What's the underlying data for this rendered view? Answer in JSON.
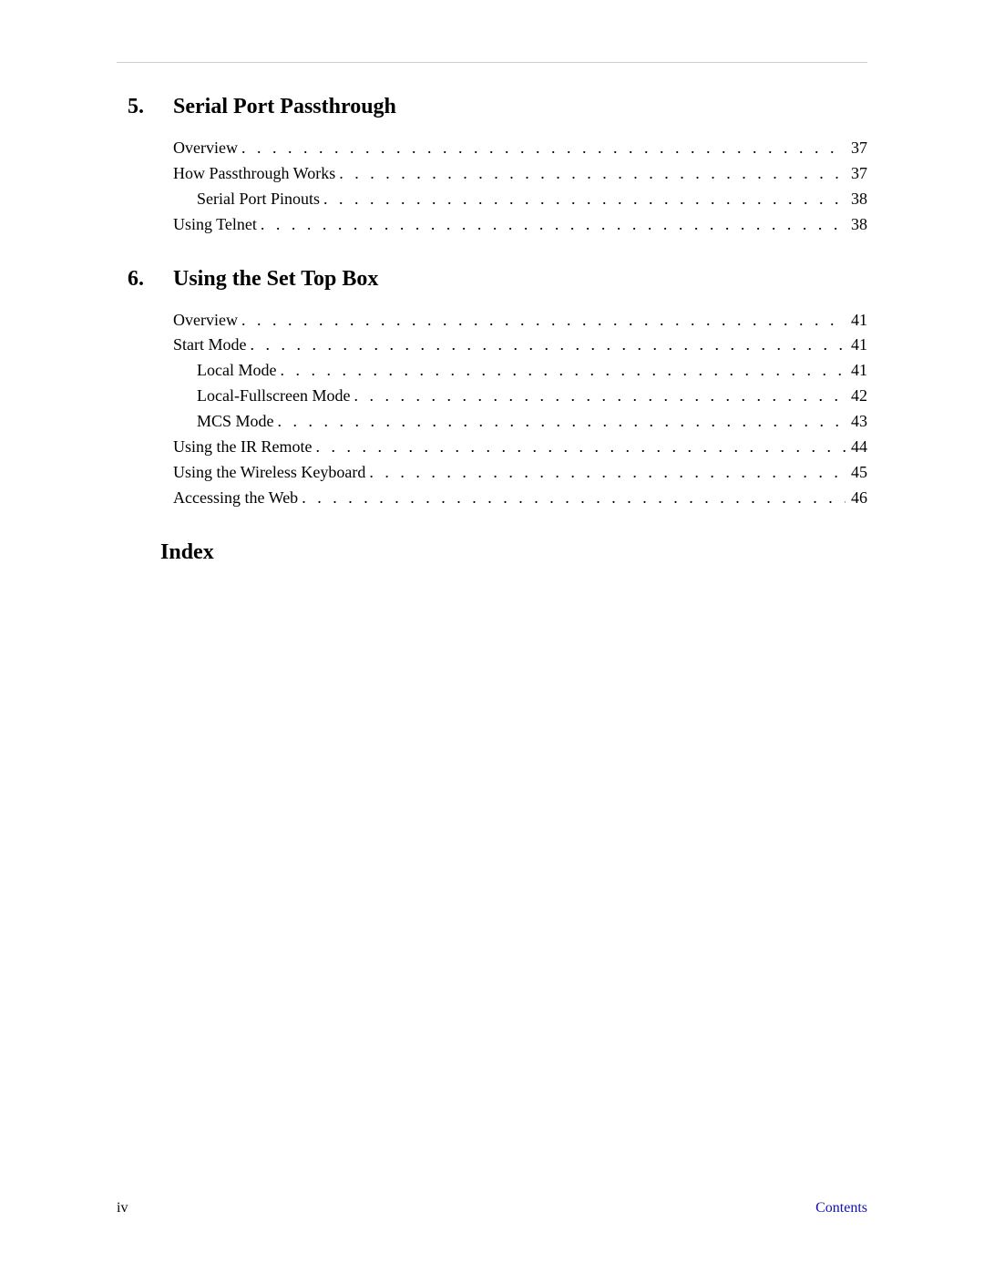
{
  "colors": {
    "background": "#ffffff",
    "text": "#000000",
    "rule": "#cccccc",
    "link": "#1010b8"
  },
  "typography": {
    "body_font": "Garamond / serif",
    "heading_fontsize_pt": 18,
    "body_fontsize_pt": 14
  },
  "sections": [
    {
      "number": "5.",
      "title": "Serial Port Passthrough",
      "entries": [
        {
          "label": "Overview",
          "page": "37",
          "indent": 0
        },
        {
          "label": "How Passthrough Works",
          "page": "37",
          "indent": 0
        },
        {
          "label": "Serial Port Pinouts",
          "page": "38",
          "indent": 1
        },
        {
          "label": "Using Telnet",
          "page": "38",
          "indent": 0
        }
      ]
    },
    {
      "number": "6.",
      "title": "Using the Set Top Box",
      "entries": [
        {
          "label": "Overview",
          "page": "41",
          "indent": 0
        },
        {
          "label": "Start Mode",
          "page": "41",
          "indent": 0
        },
        {
          "label": "Local Mode",
          "page": "41",
          "indent": 1
        },
        {
          "label": "Local-Fullscreen Mode",
          "page": "42",
          "indent": 1
        },
        {
          "label": "MCS Mode",
          "page": "43",
          "indent": 1
        },
        {
          "label": "Using the IR Remote",
          "page": "44",
          "indent": 0
        },
        {
          "label": "Using the Wireless Keyboard",
          "page": "45",
          "indent": 0
        },
        {
          "label": "Accessing the Web",
          "page": "46",
          "indent": 0
        }
      ]
    }
  ],
  "index_title": "Index",
  "footer": {
    "page_number": "iv",
    "right_label": "Contents"
  }
}
